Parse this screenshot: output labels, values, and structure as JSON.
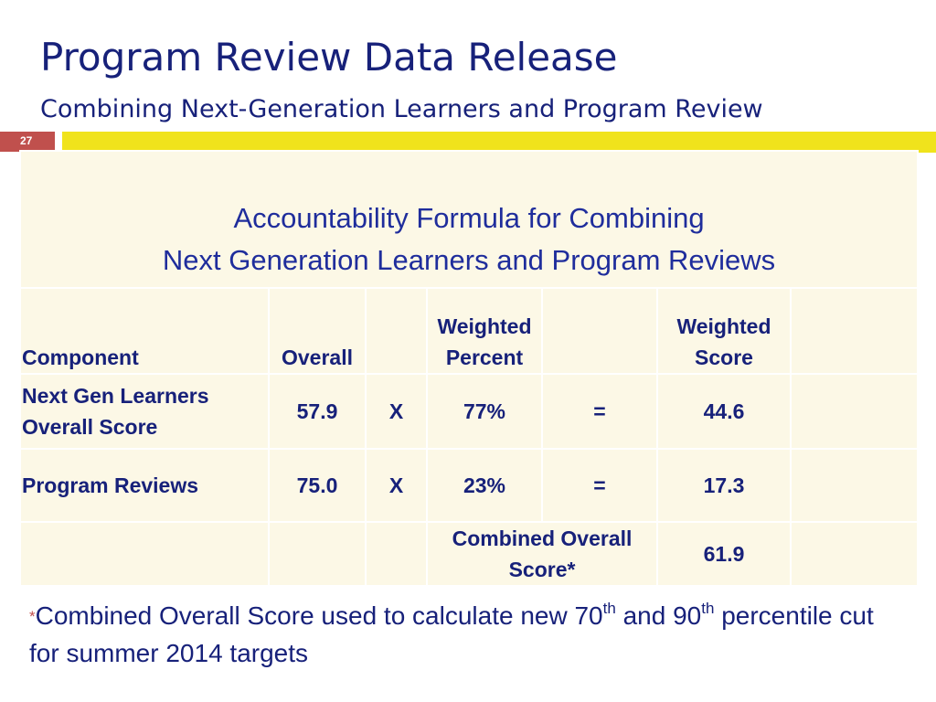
{
  "slide": {
    "title": "Program Review Data Release",
    "subtitle": "Combining Next-Generation Learners and Program Review",
    "page_number": "27"
  },
  "table": {
    "title_line1": "Accountability Formula for Combining",
    "title_line2": "Next Generation Learners and Program Reviews",
    "headers": {
      "component": "Component",
      "overall": "Overall",
      "weighted_percent_1": "Weighted",
      "weighted_percent_2": "Percent",
      "weighted_score_1": "Weighted",
      "weighted_score_2": "Score"
    },
    "rows": [
      {
        "component_line1": "Next Gen Learners",
        "component_line2": "Overall Score",
        "overall": "57.9",
        "operator": "X",
        "weighted_percent": "77%",
        "equals": "=",
        "weighted_score": "44.6"
      },
      {
        "component_line1": "Program Reviews",
        "overall": "75.0",
        "operator": "X",
        "weighted_percent": "23%",
        "equals": "=",
        "weighted_score": "17.3"
      }
    ],
    "total": {
      "label_line1": "Combined Overall",
      "label_line2": "Score*",
      "value": "61.9"
    }
  },
  "footnote": {
    "marker": "*",
    "text_part1": "Combined Overall Score used to calculate new 70",
    "sup1": "th",
    "text_part2": " and 90",
    "sup2": "th",
    "text_part3": " percentile cut",
    "line2": "for summer 2014 targets"
  },
  "colors": {
    "title": "#17217a",
    "table_title": "#1f2d9c",
    "accent_bar": "#f0e31c",
    "page_badge": "#c0504d",
    "cell_background": "#fcf8e6"
  }
}
